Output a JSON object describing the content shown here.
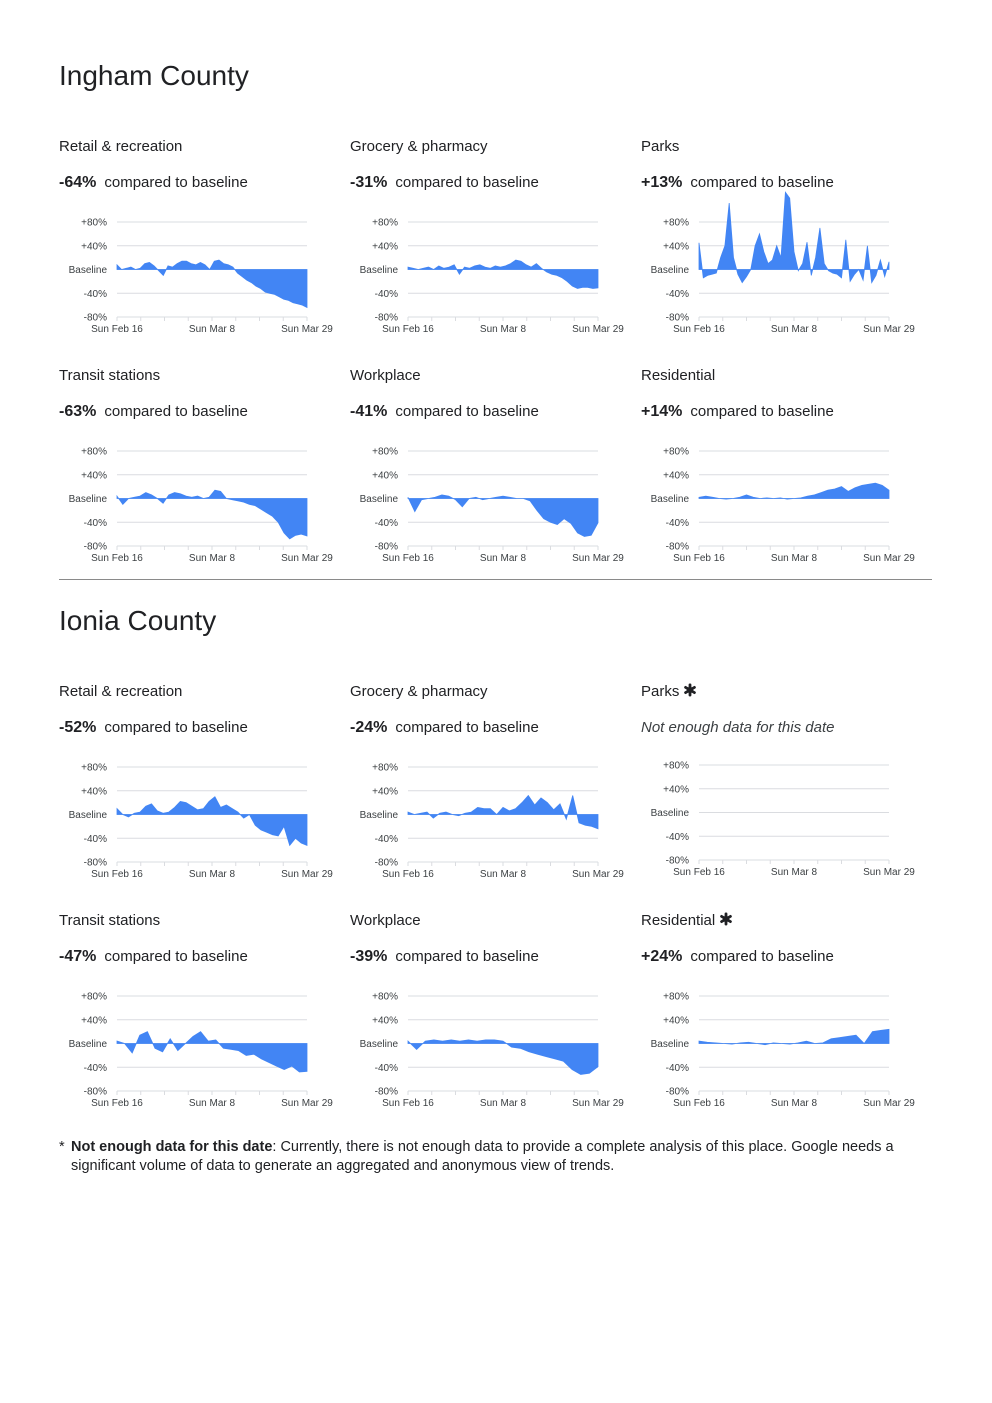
{
  "colors": {
    "fill": "#4285f4",
    "grid": "#dadce0",
    "text": "#202124",
    "axis": "#3c4043"
  },
  "labels": {
    "compared": "compared to baseline",
    "not_enough": "Not enough data for this date",
    "y_ticks": [
      "+80%",
      "+40%",
      "Baseline",
      "-40%",
      "-80%"
    ],
    "x_ticks": [
      "Sun Feb 16",
      "Sun Mar 8",
      "Sun Mar 29"
    ]
  },
  "counties": [
    {
      "name": "Ingham County",
      "panels": [
        {
          "title": "Retail & recreation",
          "pct": "-64%",
          "asterisk": false,
          "has_data": true,
          "chart_data": {
            "type": "area",
            "ylim": [
              -80,
              80
            ],
            "x_ticks": [
              "Sun Feb 16",
              "Sun Mar 8",
              "Sun Mar 29"
            ],
            "values": [
              8,
              0,
              2,
              4,
              0,
              2,
              10,
              12,
              6,
              -2,
              -10,
              6,
              4,
              10,
              14,
              14,
              10,
              8,
              12,
              8,
              0,
              14,
              16,
              10,
              8,
              4,
              -6,
              -12,
              -18,
              -22,
              -28,
              -32,
              -38,
              -40,
              -42,
              -46,
              -50,
              -52,
              -56,
              -58,
              -60,
              -64
            ]
          }
        },
        {
          "title": "Grocery & pharmacy",
          "pct": "-31%",
          "asterisk": false,
          "has_data": true,
          "chart_data": {
            "type": "area",
            "ylim": [
              -80,
              80
            ],
            "x_ticks": [
              "Sun Feb 16",
              "Sun Mar 8",
              "Sun Mar 29"
            ],
            "values": [
              4,
              2,
              0,
              2,
              4,
              0,
              6,
              2,
              4,
              8,
              -8,
              4,
              2,
              6,
              8,
              4,
              2,
              6,
              4,
              6,
              10,
              16,
              14,
              8,
              4,
              10,
              2,
              -4,
              -8,
              -10,
              -14,
              -20,
              -28,
              -32,
              -30,
              -30,
              -32,
              -31
            ]
          }
        },
        {
          "title": "Parks",
          "pct": "+13%",
          "asterisk": false,
          "has_data": true,
          "chart_data": {
            "type": "area",
            "ylim": [
              -80,
              80
            ],
            "x_ticks": [
              "Sun Feb 16",
              "Sun Mar 8",
              "Sun Mar 29"
            ],
            "values": [
              45,
              -14,
              -10,
              -8,
              -6,
              20,
              40,
              112,
              20,
              -8,
              -22,
              -12,
              0,
              40,
              60,
              30,
              10,
              16,
              40,
              20,
              130,
              120,
              30,
              -2,
              10,
              46,
              -10,
              20,
              70,
              10,
              -2,
              -6,
              -8,
              -14,
              50,
              -20,
              -8,
              0,
              -18,
              40,
              -22,
              -10,
              16,
              -12,
              13
            ]
          }
        },
        {
          "title": "Transit stations",
          "pct": "-63%",
          "asterisk": false,
          "has_data": true,
          "chart_data": {
            "type": "area",
            "ylim": [
              -80,
              80
            ],
            "x_ticks": [
              "Sun Feb 16",
              "Sun Mar 8",
              "Sun Mar 29"
            ],
            "values": [
              4,
              -10,
              0,
              2,
              4,
              10,
              6,
              0,
              -8,
              6,
              10,
              8,
              4,
              2,
              4,
              0,
              2,
              14,
              12,
              0,
              -2,
              -4,
              -6,
              -10,
              -12,
              -18,
              -24,
              -30,
              -40,
              -58,
              -68,
              -62,
              -60,
              -63
            ]
          }
        },
        {
          "title": "Workplace",
          "pct": "-41%",
          "asterisk": false,
          "has_data": true,
          "chart_data": {
            "type": "area",
            "ylim": [
              -80,
              80
            ],
            "x_ticks": [
              "Sun Feb 16",
              "Sun Mar 8",
              "Sun Mar 29"
            ],
            "values": [
              2,
              -22,
              -2,
              0,
              2,
              6,
              4,
              -2,
              -14,
              0,
              2,
              -2,
              0,
              2,
              4,
              2,
              0,
              0,
              -4,
              -20,
              -34,
              -40,
              -44,
              -34,
              -42,
              -58,
              -64,
              -62,
              -41
            ]
          }
        },
        {
          "title": "Residential",
          "pct": "+14%",
          "asterisk": false,
          "has_data": true,
          "chart_data": {
            "type": "area",
            "ylim": [
              -80,
              80
            ],
            "x_ticks": [
              "Sun Feb 16",
              "Sun Mar 8",
              "Sun Mar 29"
            ],
            "values": [
              2,
              4,
              2,
              0,
              -1,
              0,
              2,
              6,
              2,
              0,
              1,
              0,
              1,
              -1,
              0,
              1,
              4,
              6,
              10,
              14,
              16,
              20,
              12,
              18,
              22,
              24,
              26,
              22,
              14
            ]
          }
        }
      ]
    },
    {
      "name": "Ionia County",
      "panels": [
        {
          "title": "Retail & recreation",
          "pct": "-52%",
          "asterisk": false,
          "has_data": true,
          "chart_data": {
            "type": "area",
            "ylim": [
              -80,
              80
            ],
            "x_ticks": [
              "Sun Feb 16",
              "Sun Mar 8",
              "Sun Mar 29"
            ],
            "values": [
              10,
              0,
              -4,
              2,
              4,
              14,
              18,
              6,
              2,
              4,
              12,
              22,
              20,
              14,
              8,
              10,
              22,
              30,
              12,
              16,
              10,
              4,
              -6,
              0,
              -18,
              -26,
              -30,
              -34,
              -36,
              -20,
              -52,
              -40,
              -48,
              -52
            ]
          }
        },
        {
          "title": "Grocery & pharmacy",
          "pct": "-24%",
          "asterisk": false,
          "has_data": true,
          "chart_data": {
            "type": "area",
            "ylim": [
              -80,
              80
            ],
            "x_ticks": [
              "Sun Feb 16",
              "Sun Mar 8",
              "Sun Mar 29"
            ],
            "values": [
              4,
              0,
              2,
              4,
              -6,
              2,
              4,
              0,
              -2,
              2,
              4,
              12,
              10,
              10,
              0,
              12,
              6,
              10,
              20,
              32,
              16,
              28,
              20,
              8,
              18,
              -8,
              32,
              -14,
              -18,
              -20,
              -24
            ]
          }
        },
        {
          "title": "Parks",
          "pct": "",
          "asterisk": true,
          "has_data": false,
          "chart_data": {
            "type": "area",
            "ylim": [
              -80,
              80
            ],
            "x_ticks": [
              "Sun Feb 16",
              "Sun Mar 8",
              "Sun Mar 29"
            ],
            "values": []
          }
        },
        {
          "title": "Transit stations",
          "pct": "-47%",
          "asterisk": false,
          "has_data": true,
          "chart_data": {
            "type": "area",
            "ylim": [
              -80,
              80
            ],
            "x_ticks": [
              "Sun Feb 16",
              "Sun Mar 8",
              "Sun Mar 29"
            ],
            "values": [
              4,
              0,
              -16,
              14,
              20,
              -8,
              -14,
              8,
              -12,
              0,
              12,
              20,
              4,
              6,
              -8,
              -10,
              -12,
              -20,
              -18,
              -26,
              -32,
              -38,
              -44,
              -38,
              -48,
              -47
            ]
          }
        },
        {
          "title": "Workplace",
          "pct": "-39%",
          "asterisk": false,
          "has_data": true,
          "chart_data": {
            "type": "area",
            "ylim": [
              -80,
              80
            ],
            "x_ticks": [
              "Sun Feb 16",
              "Sun Mar 8",
              "Sun Mar 29"
            ],
            "values": [
              4,
              -10,
              4,
              6,
              4,
              6,
              4,
              6,
              4,
              6,
              6,
              4,
              -6,
              -8,
              -14,
              -18,
              -22,
              -26,
              -30,
              -44,
              -52,
              -50,
              -39
            ]
          }
        },
        {
          "title": "Residential",
          "pct": "+24%",
          "asterisk": true,
          "has_data": true,
          "chart_data": {
            "type": "area",
            "ylim": [
              -80,
              80
            ],
            "x_ticks": [
              "Sun Feb 16",
              "Sun Mar 8",
              "Sun Mar 29"
            ],
            "values": [
              4,
              2,
              1,
              0,
              -1,
              1,
              2,
              0,
              -2,
              1,
              0,
              -1,
              1,
              4,
              0,
              1,
              8,
              10,
              12,
              14,
              0,
              20,
              22,
              24
            ]
          }
        }
      ]
    }
  ],
  "footnote": {
    "star": "*",
    "bold": "Not enough data for this date",
    "text": ": Currently, there is not enough data to provide a complete analysis of this place. Google needs a significant volume of data to generate an aggregated and anonymous view of trends."
  }
}
